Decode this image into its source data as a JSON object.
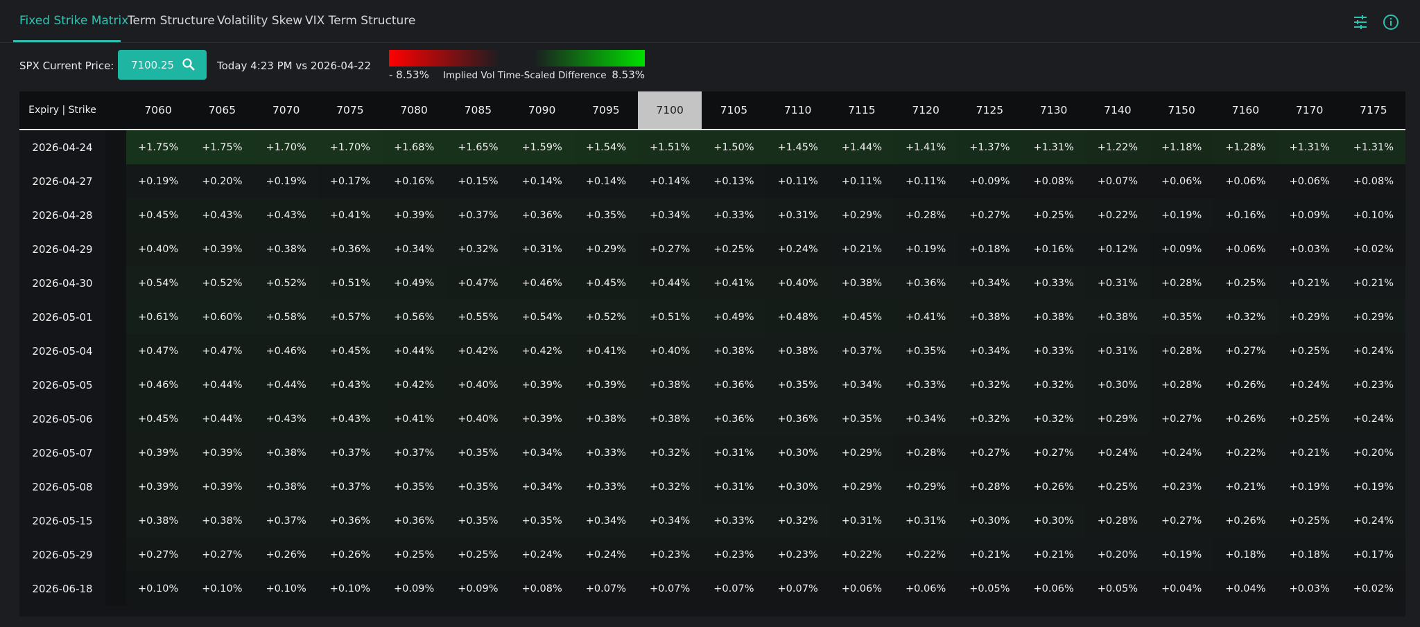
{
  "tabs": [
    "Fixed Strike Matrix",
    "Term Structure",
    "Volatility Skew",
    "VIX Term Structure"
  ],
  "price_bar": {
    "label": "SPX Current Price:",
    "price": "7100.25",
    "comparison": "Today 4:23 PM vs 2026-04-22"
  },
  "legend": {
    "min_label": "- 8.53%",
    "title": "Implied Vol Time-Scaled Difference",
    "max_label": "8.53%"
  },
  "table": {
    "header_label": "Expiry | Strike",
    "strikes": [
      7060,
      7065,
      7070,
      7075,
      7080,
      7085,
      7090,
      7095,
      7100,
      7105,
      7110,
      7115,
      7120,
      7125,
      7130,
      7140,
      7150,
      7160,
      7170,
      7175
    ],
    "rows": [
      {
        "expiry": "2026-04-24",
        "cells": [
          "+1.75%",
          "+1.75%",
          "+1.70%",
          "+1.70%",
          "+1.68%",
          "+1.65%",
          "+1.59%",
          "+1.54%",
          "+1.51%",
          "+1.50%",
          "+1.45%",
          "+1.44%",
          "+1.41%",
          "+1.37%",
          "+1.31%",
          "+1.22%",
          "+1.18%",
          "+1.28%",
          "+1.31%",
          "+1.31%"
        ]
      },
      {
        "expiry": "2026-04-27",
        "cells": [
          "+0.19%",
          "+0.20%",
          "+0.19%",
          "+0.17%",
          "+0.16%",
          "+0.15%",
          "+0.14%",
          "+0.14%",
          "+0.14%",
          "+0.13%",
          "+0.11%",
          "+0.11%",
          "+0.11%",
          "+0.09%",
          "+0.08%",
          "+0.07%",
          "+0.06%",
          "+0.06%",
          "+0.06%",
          "+0.08%"
        ]
      },
      {
        "expiry": "2026-04-28",
        "cells": [
          "+0.45%",
          "+0.43%",
          "+0.43%",
          "+0.41%",
          "+0.39%",
          "+0.37%",
          "+0.36%",
          "+0.35%",
          "+0.34%",
          "+0.33%",
          "+0.31%",
          "+0.29%",
          "+0.28%",
          "+0.27%",
          "+0.25%",
          "+0.22%",
          "+0.19%",
          "+0.16%",
          "+0.09%",
          "+0.10%"
        ]
      },
      {
        "expiry": "2026-04-29",
        "cells": [
          "+0.40%",
          "+0.39%",
          "+0.38%",
          "+0.36%",
          "+0.34%",
          "+0.32%",
          "+0.31%",
          "+0.29%",
          "+0.27%",
          "+0.25%",
          "+0.24%",
          "+0.21%",
          "+0.19%",
          "+0.18%",
          "+0.16%",
          "+0.12%",
          "+0.09%",
          "+0.06%",
          "+0.03%",
          "+0.02%"
        ]
      },
      {
        "expiry": "2026-04-30",
        "cells": [
          "+0.54%",
          "+0.52%",
          "+0.52%",
          "+0.51%",
          "+0.49%",
          "+0.47%",
          "+0.46%",
          "+0.45%",
          "+0.44%",
          "+0.41%",
          "+0.40%",
          "+0.38%",
          "+0.36%",
          "+0.34%",
          "+0.33%",
          "+0.31%",
          "+0.28%",
          "+0.25%",
          "+0.21%",
          "+0.21%"
        ]
      },
      {
        "expiry": "2026-05-01",
        "cells": [
          "+0.61%",
          "+0.60%",
          "+0.58%",
          "+0.57%",
          "+0.56%",
          "+0.55%",
          "+0.54%",
          "+0.52%",
          "+0.51%",
          "+0.49%",
          "+0.48%",
          "+0.45%",
          "+0.41%",
          "+0.38%",
          "+0.38%",
          "+0.38%",
          "+0.35%",
          "+0.32%",
          "+0.29%",
          "+0.29%"
        ]
      },
      {
        "expiry": "2026-05-04",
        "cells": [
          "+0.47%",
          "+0.47%",
          "+0.46%",
          "+0.45%",
          "+0.44%",
          "+0.42%",
          "+0.42%",
          "+0.41%",
          "+0.40%",
          "+0.38%",
          "+0.38%",
          "+0.37%",
          "+0.35%",
          "+0.34%",
          "+0.33%",
          "+0.31%",
          "+0.28%",
          "+0.27%",
          "+0.25%",
          "+0.24%"
        ]
      },
      {
        "expiry": "2026-05-05",
        "cells": [
          "+0.46%",
          "+0.44%",
          "+0.44%",
          "+0.43%",
          "+0.42%",
          "+0.40%",
          "+0.39%",
          "+0.39%",
          "+0.38%",
          "+0.36%",
          "+0.35%",
          "+0.34%",
          "+0.33%",
          "+0.32%",
          "+0.32%",
          "+0.30%",
          "+0.28%",
          "+0.26%",
          "+0.24%",
          "+0.23%"
        ]
      },
      {
        "expiry": "2026-05-06",
        "cells": [
          "+0.45%",
          "+0.44%",
          "+0.43%",
          "+0.43%",
          "+0.41%",
          "+0.40%",
          "+0.39%",
          "+0.38%",
          "+0.38%",
          "+0.36%",
          "+0.36%",
          "+0.35%",
          "+0.34%",
          "+0.32%",
          "+0.32%",
          "+0.29%",
          "+0.27%",
          "+0.26%",
          "+0.25%",
          "+0.24%"
        ]
      },
      {
        "expiry": "2026-05-07",
        "cells": [
          "+0.39%",
          "+0.39%",
          "+0.38%",
          "+0.37%",
          "+0.37%",
          "+0.35%",
          "+0.34%",
          "+0.33%",
          "+0.32%",
          "+0.31%",
          "+0.30%",
          "+0.29%",
          "+0.28%",
          "+0.27%",
          "+0.27%",
          "+0.24%",
          "+0.24%",
          "+0.22%",
          "+0.21%",
          "+0.20%"
        ]
      },
      {
        "expiry": "2026-05-08",
        "cells": [
          "+0.39%",
          "+0.39%",
          "+0.38%",
          "+0.37%",
          "+0.35%",
          "+0.35%",
          "+0.34%",
          "+0.33%",
          "+0.32%",
          "+0.31%",
          "+0.30%",
          "+0.29%",
          "+0.29%",
          "+0.28%",
          "+0.26%",
          "+0.25%",
          "+0.23%",
          "+0.21%",
          "+0.19%",
          "+0.19%"
        ]
      },
      {
        "expiry": "2026-05-15",
        "cells": [
          "+0.38%",
          "+0.38%",
          "+0.37%",
          "+0.36%",
          "+0.36%",
          "+0.35%",
          "+0.35%",
          "+0.34%",
          "+0.34%",
          "+0.33%",
          "+0.32%",
          "+0.31%",
          "+0.31%",
          "+0.30%",
          "+0.30%",
          "+0.28%",
          "+0.27%",
          "+0.26%",
          "+0.25%",
          "+0.24%"
        ]
      },
      {
        "expiry": "2026-05-29",
        "cells": [
          "+0.27%",
          "+0.27%",
          "+0.26%",
          "+0.26%",
          "+0.25%",
          "+0.25%",
          "+0.24%",
          "+0.24%",
          "+0.23%",
          "+0.23%",
          "+0.23%",
          "+0.22%",
          "+0.22%",
          "+0.21%",
          "+0.21%",
          "+0.20%",
          "+0.19%",
          "+0.18%",
          "+0.18%",
          "+0.17%"
        ]
      },
      {
        "expiry": "2026-06-18",
        "cells": [
          "+0.10%",
          "+0.10%",
          "+0.10%",
          "+0.10%",
          "+0.09%",
          "+0.09%",
          "+0.08%",
          "+0.07%",
          "+0.07%",
          "+0.07%",
          "+0.07%",
          "+0.06%",
          "+0.06%",
          "+0.05%",
          "+0.06%",
          "+0.05%",
          "+0.04%",
          "+0.04%",
          "+0.03%",
          "+0.02%"
        ]
      }
    ]
  }
}
